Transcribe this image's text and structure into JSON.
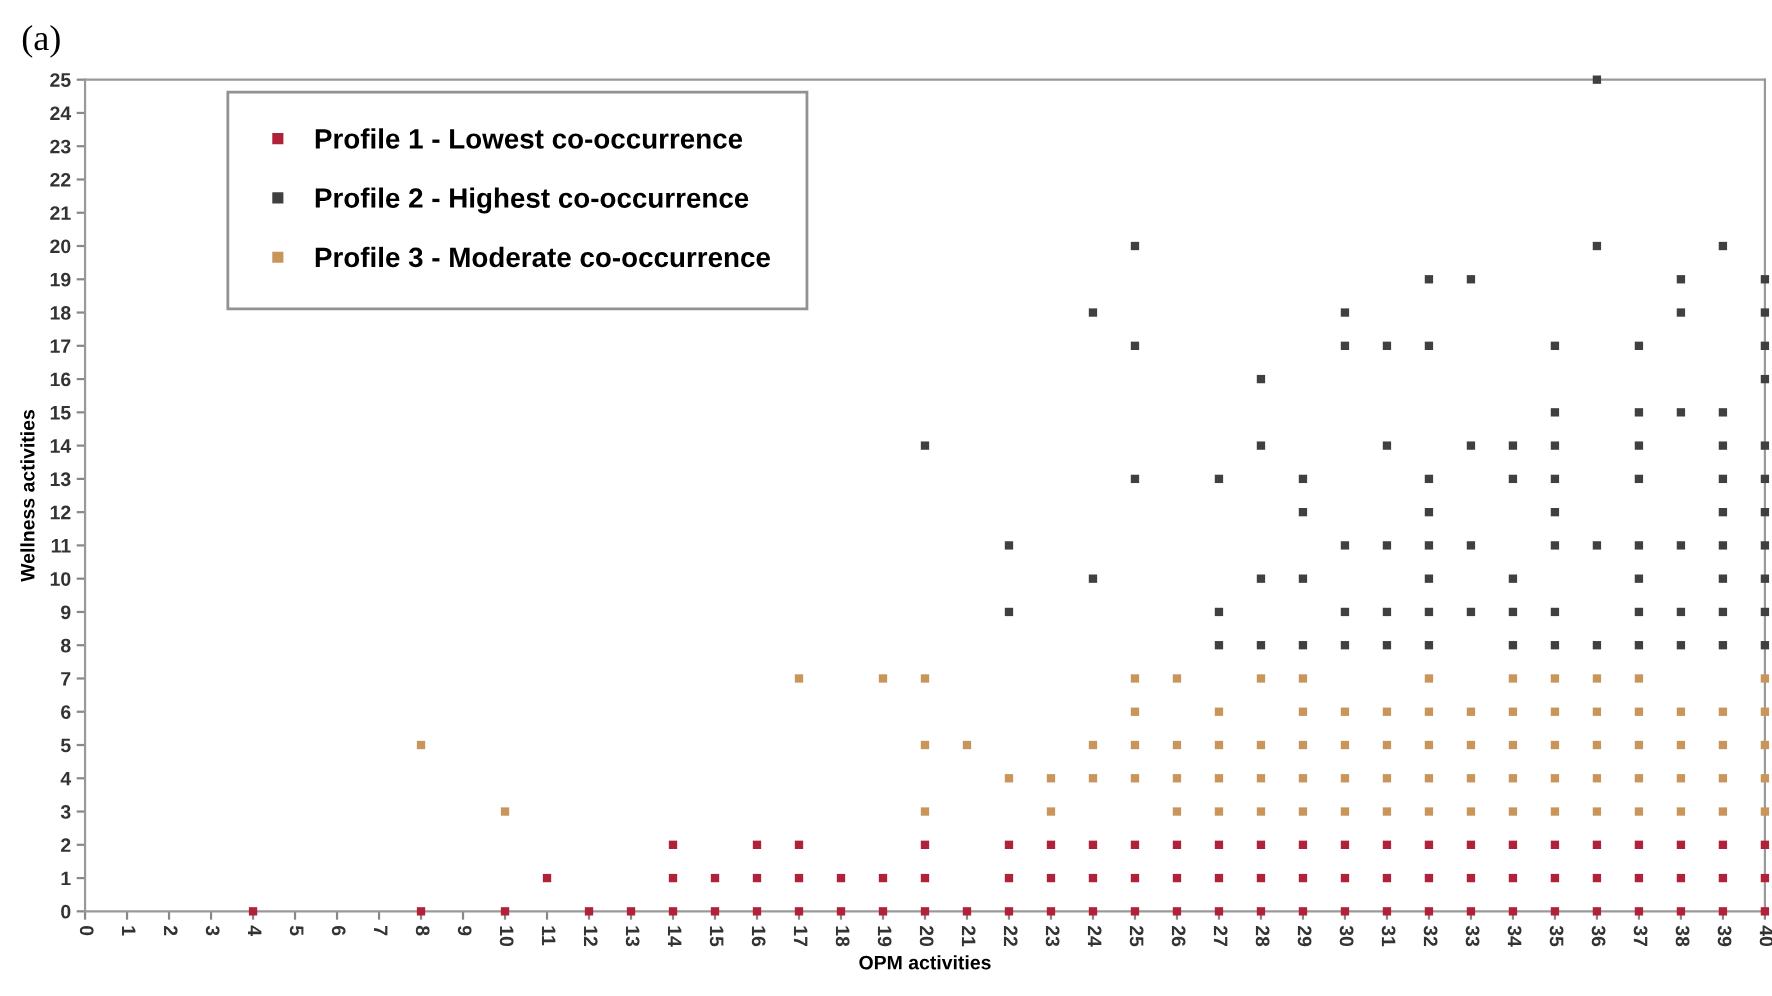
{
  "chart_data": {
    "type": "scatter",
    "title": "(a)",
    "xlabel": "OPM activities",
    "ylabel": "Wellness activities",
    "xlim": [
      0,
      40
    ],
    "ylim": [
      0,
      25
    ],
    "xticks": [
      0,
      1,
      2,
      3,
      4,
      5,
      6,
      7,
      8,
      9,
      10,
      11,
      12,
      13,
      14,
      15,
      16,
      17,
      18,
      19,
      20,
      21,
      22,
      23,
      24,
      25,
      26,
      27,
      28,
      29,
      30,
      31,
      32,
      33,
      34,
      35,
      36,
      37,
      38,
      39,
      40
    ],
    "yticks": [
      0,
      1,
      2,
      3,
      4,
      5,
      6,
      7,
      8,
      9,
      10,
      11,
      12,
      13,
      14,
      15,
      16,
      17,
      18,
      19,
      20,
      21,
      22,
      23,
      24,
      25
    ],
    "grid": false,
    "legend": "top left",
    "marker": "square",
    "series": [
      {
        "name": "Profile 1 - Lowest co-occurrence",
        "color": "#b0213a",
        "x": [
          4,
          8,
          10,
          11,
          12,
          13,
          14,
          14,
          14,
          15,
          15,
          16,
          16,
          16,
          17,
          17,
          17,
          18,
          18,
          19,
          19,
          20,
          20,
          20,
          21,
          22,
          22,
          22,
          23,
          23,
          23,
          24,
          24,
          24,
          25,
          25,
          25,
          26,
          26,
          26,
          27,
          27,
          27,
          28,
          28,
          28,
          29,
          29,
          29,
          30,
          30,
          30,
          31,
          31,
          31,
          32,
          32,
          32,
          33,
          33,
          33,
          34,
          34,
          34,
          35,
          35,
          35,
          36,
          36,
          36,
          37,
          37,
          37,
          38,
          38,
          38,
          39,
          39,
          39,
          40,
          40,
          40
        ],
        "values": [
          0,
          0,
          0,
          1,
          0,
          0,
          0,
          1,
          2,
          0,
          1,
          0,
          1,
          2,
          0,
          1,
          2,
          0,
          1,
          0,
          1,
          0,
          1,
          2,
          0,
          0,
          1,
          2,
          0,
          1,
          2,
          0,
          1,
          2,
          0,
          1,
          2,
          0,
          1,
          2,
          0,
          1,
          2,
          0,
          1,
          2,
          0,
          1,
          2,
          0,
          1,
          2,
          0,
          1,
          2,
          0,
          1,
          2,
          0,
          1,
          2,
          0,
          1,
          2,
          0,
          1,
          2,
          0,
          1,
          2,
          0,
          1,
          2,
          0,
          1,
          2,
          0,
          1,
          2,
          0,
          1,
          2
        ]
      },
      {
        "name": "Profile 2 - Highest co-occurrence",
        "color": "#404040",
        "x": [
          27,
          28,
          29,
          30,
          31,
          32,
          34,
          35,
          36,
          37,
          38,
          39,
          40,
          22,
          27,
          30,
          31,
          32,
          33,
          34,
          35,
          37,
          38,
          39,
          40,
          24,
          28,
          29,
          32,
          34,
          37,
          39,
          40,
          22,
          30,
          31,
          32,
          33,
          35,
          36,
          37,
          38,
          39,
          40,
          29,
          32,
          35,
          39,
          40,
          25,
          27,
          29,
          32,
          34,
          35,
          37,
          39,
          40,
          20,
          28,
          31,
          33,
          34,
          35,
          37,
          39,
          40,
          35,
          37,
          38,
          39,
          28,
          40,
          25,
          30,
          31,
          32,
          35,
          37,
          40,
          24,
          30,
          38,
          40,
          32,
          33,
          38,
          40,
          25,
          36,
          39,
          36
        ],
        "values": [
          8,
          8,
          8,
          8,
          8,
          8,
          8,
          8,
          8,
          8,
          8,
          8,
          8,
          9,
          9,
          9,
          9,
          9,
          9,
          9,
          9,
          9,
          9,
          9,
          9,
          10,
          10,
          10,
          10,
          10,
          10,
          10,
          10,
          11,
          11,
          11,
          11,
          11,
          11,
          11,
          11,
          11,
          11,
          11,
          12,
          12,
          12,
          12,
          12,
          13,
          13,
          13,
          13,
          13,
          13,
          13,
          13,
          13,
          14,
          14,
          14,
          14,
          14,
          14,
          14,
          14,
          14,
          15,
          15,
          15,
          15,
          16,
          16,
          17,
          17,
          17,
          17,
          17,
          17,
          17,
          18,
          18,
          18,
          18,
          19,
          19,
          19,
          19,
          20,
          20,
          20,
          25
        ]
      },
      {
        "name": "Profile 3 - Moderate co-occurrence",
        "color": "#c9955a",
        "x": [
          8,
          10,
          17,
          19,
          20,
          20,
          20,
          21,
          22,
          23,
          23,
          24,
          24,
          25,
          25,
          25,
          25,
          26,
          26,
          26,
          26,
          27,
          27,
          27,
          27,
          28,
          28,
          28,
          28,
          29,
          29,
          29,
          29,
          29,
          30,
          30,
          30,
          30,
          31,
          31,
          31,
          31,
          32,
          32,
          32,
          32,
          32,
          33,
          33,
          33,
          33,
          34,
          34,
          34,
          34,
          34,
          35,
          35,
          35,
          35,
          35,
          36,
          36,
          36,
          36,
          36,
          37,
          37,
          37,
          37,
          37,
          38,
          38,
          38,
          38,
          39,
          39,
          39,
          39,
          40,
          40,
          40,
          40,
          40
        ],
        "values": [
          5,
          3,
          7,
          7,
          3,
          5,
          7,
          5,
          4,
          3,
          4,
          4,
          5,
          4,
          5,
          6,
          7,
          3,
          4,
          5,
          7,
          3,
          4,
          5,
          6,
          3,
          4,
          5,
          7,
          3,
          4,
          5,
          6,
          7,
          3,
          4,
          5,
          6,
          3,
          4,
          5,
          6,
          3,
          4,
          5,
          6,
          7,
          3,
          4,
          5,
          6,
          3,
          4,
          5,
          6,
          7,
          3,
          4,
          5,
          6,
          7,
          3,
          4,
          5,
          6,
          7,
          3,
          4,
          5,
          6,
          7,
          3,
          4,
          5,
          6,
          3,
          4,
          5,
          6,
          3,
          4,
          5,
          6,
          7
        ]
      }
    ]
  }
}
